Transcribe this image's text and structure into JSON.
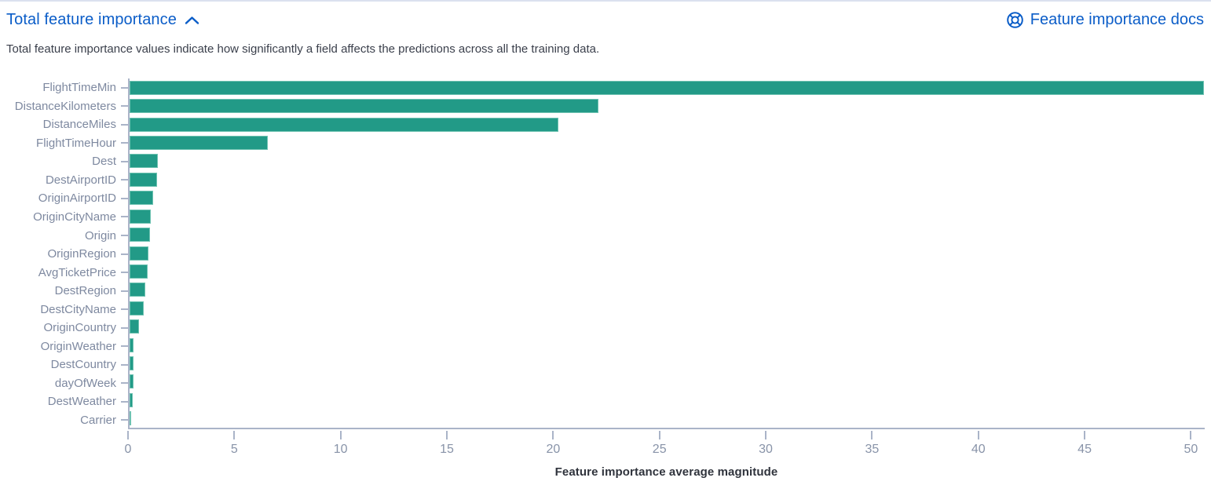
{
  "header": {
    "title": "Total feature importance",
    "collapse_icon": "chevron-up-icon",
    "docs_link_label": "Feature importance docs",
    "docs_icon": "lifebuoy-documentation-icon"
  },
  "description": "Total feature importance values indicate how significantly a field affects the predictions across all the training data.",
  "chart_data": {
    "type": "bar",
    "orientation": "horizontal",
    "title": "",
    "xlabel": "Feature importance average magnitude",
    "ylabel": "",
    "categories": [
      "FlightTimeMin",
      "DistanceKilometers",
      "DistanceMiles",
      "FlightTimeHour",
      "Dest",
      "DestAirportID",
      "OriginAirportID",
      "OriginCityName",
      "Origin",
      "OriginRegion",
      "AvgTicketPrice",
      "DestRegion",
      "DestCityName",
      "OriginCountry",
      "OriginWeather",
      "DestCountry",
      "dayOfWeek",
      "DestWeather",
      "Carrier"
    ],
    "values": [
      50.6,
      22.1,
      20.2,
      6.5,
      1.35,
      1.3,
      1.1,
      1.0,
      0.97,
      0.9,
      0.85,
      0.75,
      0.65,
      0.45,
      0.19,
      0.18,
      0.17,
      0.15,
      0.06
    ],
    "xlim": [
      0,
      50.65
    ],
    "xticks": [
      0,
      5,
      10,
      15,
      20,
      25,
      30,
      35,
      40,
      45,
      50
    ],
    "grid": false,
    "legend": false,
    "bar_color": "#229a87"
  },
  "colors": {
    "link": "#0b5dc8",
    "bar": "#229a87",
    "axis_line": "#aab4c8",
    "axis_label": "#7e89a0",
    "tick_label": "#8893a8"
  }
}
